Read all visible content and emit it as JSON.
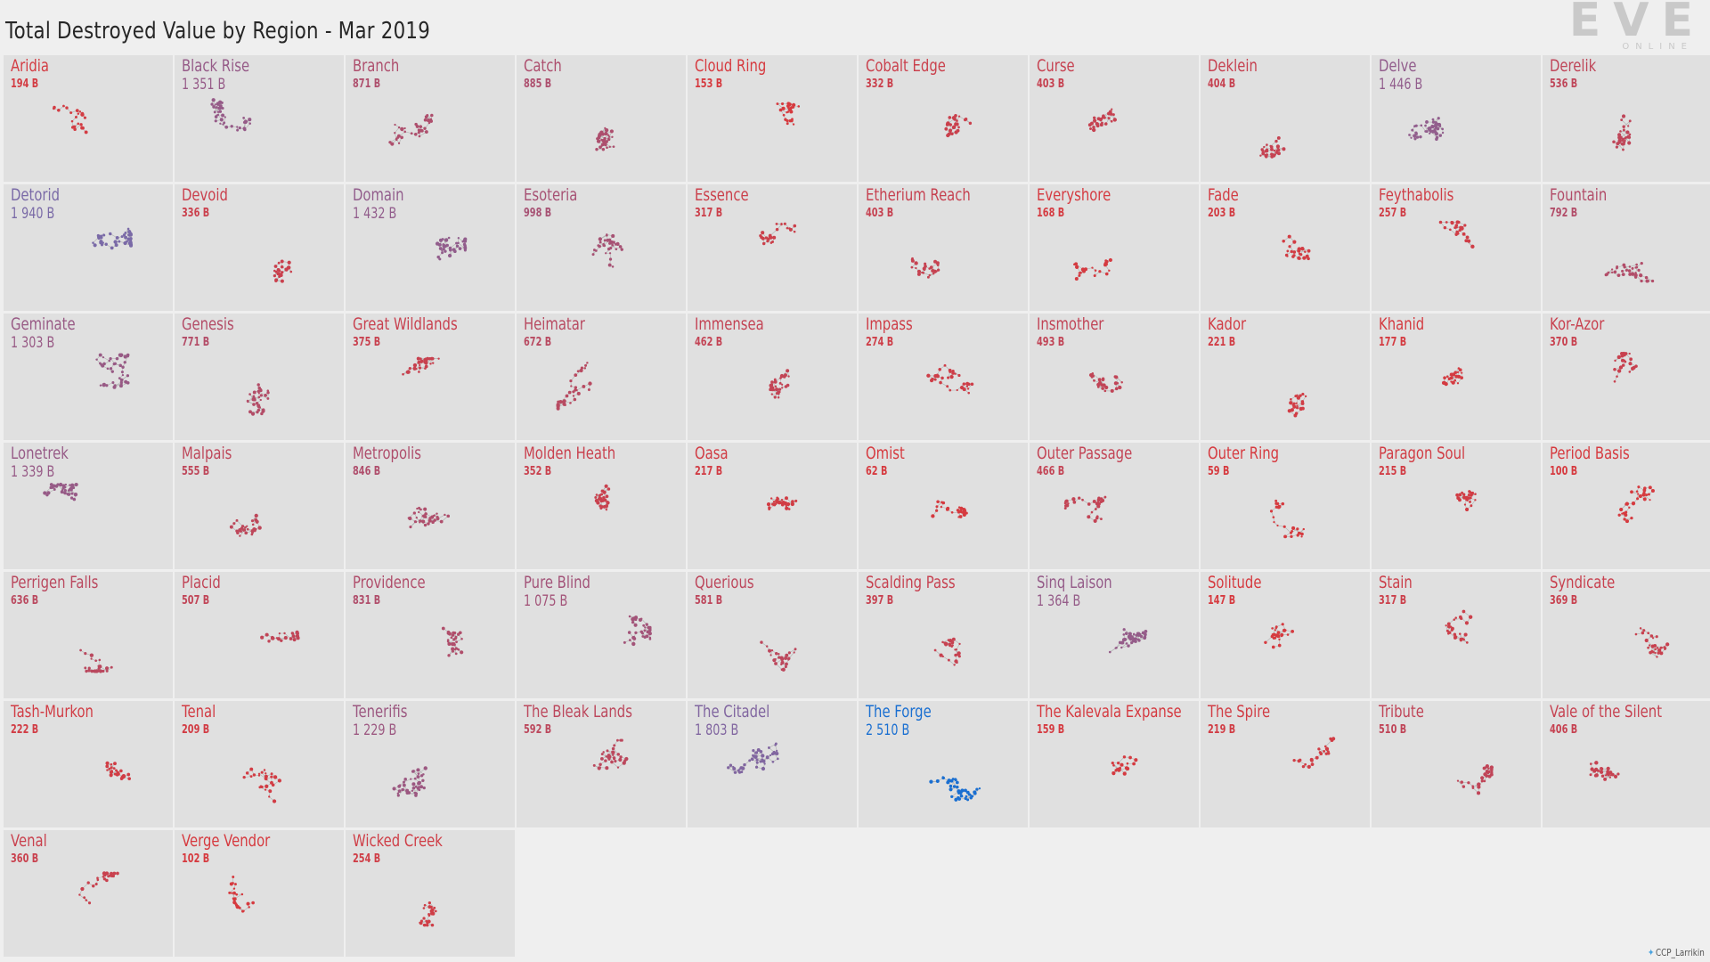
{
  "title": "Total Destroyed Value by Region - Mar 2019",
  "logo": {
    "text": "EVE",
    "sub": "ONLINE"
  },
  "credit": "CCP_Larrikin",
  "colors": {
    "high": "#1a6fd1",
    "mid": "#7a6aa8",
    "low": "#d63a3f",
    "edge": "#b0b0b0"
  },
  "chart_data": {
    "type": "small-multiples",
    "title": "Total Destroyed Value by Region - Mar 2019",
    "unit": "B",
    "regions": [
      {
        "name": "Aridia",
        "label": "194 B",
        "value": 194
      },
      {
        "name": "Black Rise",
        "label": "1 351 B",
        "value": 1351
      },
      {
        "name": "Branch",
        "label": "871 B",
        "value": 871
      },
      {
        "name": "Catch",
        "label": "885 B",
        "value": 885
      },
      {
        "name": "Cloud Ring",
        "label": "153 B",
        "value": 153
      },
      {
        "name": "Cobalt Edge",
        "label": "332 B",
        "value": 332
      },
      {
        "name": "Curse",
        "label": "403 B",
        "value": 403
      },
      {
        "name": "Deklein",
        "label": "404 B",
        "value": 404
      },
      {
        "name": "Delve",
        "label": "1 446 B",
        "value": 1446
      },
      {
        "name": "Derelik",
        "label": "536 B",
        "value": 536
      },
      {
        "name": "Detorid",
        "label": "1 940 B",
        "value": 1940
      },
      {
        "name": "Devoid",
        "label": "336 B",
        "value": 336
      },
      {
        "name": "Domain",
        "label": "1 432 B",
        "value": 1432
      },
      {
        "name": "Esoteria",
        "label": "998 B",
        "value": 998
      },
      {
        "name": "Essence",
        "label": "317 B",
        "value": 317
      },
      {
        "name": "Etherium Reach",
        "label": "403 B",
        "value": 403
      },
      {
        "name": "Everyshore",
        "label": "168 B",
        "value": 168
      },
      {
        "name": "Fade",
        "label": "203 B",
        "value": 203
      },
      {
        "name": "Feythabolis",
        "label": "257 B",
        "value": 257
      },
      {
        "name": "Fountain",
        "label": "792 B",
        "value": 792
      },
      {
        "name": "Geminate",
        "label": "1 303 B",
        "value": 1303
      },
      {
        "name": "Genesis",
        "label": "771 B",
        "value": 771
      },
      {
        "name": "Great Wildlands",
        "label": "375 B",
        "value": 375
      },
      {
        "name": "Heimatar",
        "label": "672 B",
        "value": 672
      },
      {
        "name": "Immensea",
        "label": "462 B",
        "value": 462
      },
      {
        "name": "Impass",
        "label": "274 B",
        "value": 274
      },
      {
        "name": "Insmother",
        "label": "493 B",
        "value": 493
      },
      {
        "name": "Kador",
        "label": "221 B",
        "value": 221
      },
      {
        "name": "Khanid",
        "label": "177 B",
        "value": 177
      },
      {
        "name": "Kor-Azor",
        "label": "370 B",
        "value": 370
      },
      {
        "name": "Lonetrek",
        "label": "1 339 B",
        "value": 1339
      },
      {
        "name": "Malpais",
        "label": "555 B",
        "value": 555
      },
      {
        "name": "Metropolis",
        "label": "846 B",
        "value": 846
      },
      {
        "name": "Molden Heath",
        "label": "352 B",
        "value": 352
      },
      {
        "name": "Oasa",
        "label": "217 B",
        "value": 217
      },
      {
        "name": "Omist",
        "label": "62 B",
        "value": 62
      },
      {
        "name": "Outer Passage",
        "label": "466 B",
        "value": 466
      },
      {
        "name": "Outer Ring",
        "label": "59 B",
        "value": 59
      },
      {
        "name": "Paragon Soul",
        "label": "215 B",
        "value": 215
      },
      {
        "name": "Period Basis",
        "label": "100 B",
        "value": 100
      },
      {
        "name": "Perrigen Falls",
        "label": "636 B",
        "value": 636
      },
      {
        "name": "Placid",
        "label": "507 B",
        "value": 507
      },
      {
        "name": "Providence",
        "label": "831 B",
        "value": 831
      },
      {
        "name": "Pure Blind",
        "label": "1 075 B",
        "value": 1075
      },
      {
        "name": "Querious",
        "label": "581 B",
        "value": 581
      },
      {
        "name": "Scalding Pass",
        "label": "397 B",
        "value": 397
      },
      {
        "name": "Sinq Laison",
        "label": "1 364 B",
        "value": 1364
      },
      {
        "name": "Solitude",
        "label": "147 B",
        "value": 147
      },
      {
        "name": "Stain",
        "label": "317 B",
        "value": 317
      },
      {
        "name": "Syndicate",
        "label": "369 B",
        "value": 369
      },
      {
        "name": "Tash-Murkon",
        "label": "222 B",
        "value": 222
      },
      {
        "name": "Tenal",
        "label": "209 B",
        "value": 209
      },
      {
        "name": "Tenerifis",
        "label": "1 229 B",
        "value": 1229
      },
      {
        "name": "The Bleak Lands",
        "label": "592 B",
        "value": 592
      },
      {
        "name": "The Citadel",
        "label": "1 803 B",
        "value": 1803
      },
      {
        "name": "The Forge",
        "label": "2 510 B",
        "value": 2510
      },
      {
        "name": "The Kalevala Expanse",
        "label": "159 B",
        "value": 159
      },
      {
        "name": "The Spire",
        "label": "219 B",
        "value": 219
      },
      {
        "name": "Tribute",
        "label": "510 B",
        "value": 510
      },
      {
        "name": "Vale of the Silent",
        "label": "406 B",
        "value": 406
      },
      {
        "name": "Venal",
        "label": "360 B",
        "value": 360
      },
      {
        "name": "Verge Vendor",
        "label": "102 B",
        "value": 102
      },
      {
        "name": "Wicked Creek",
        "label": "254 B",
        "value": 254
      }
    ]
  }
}
